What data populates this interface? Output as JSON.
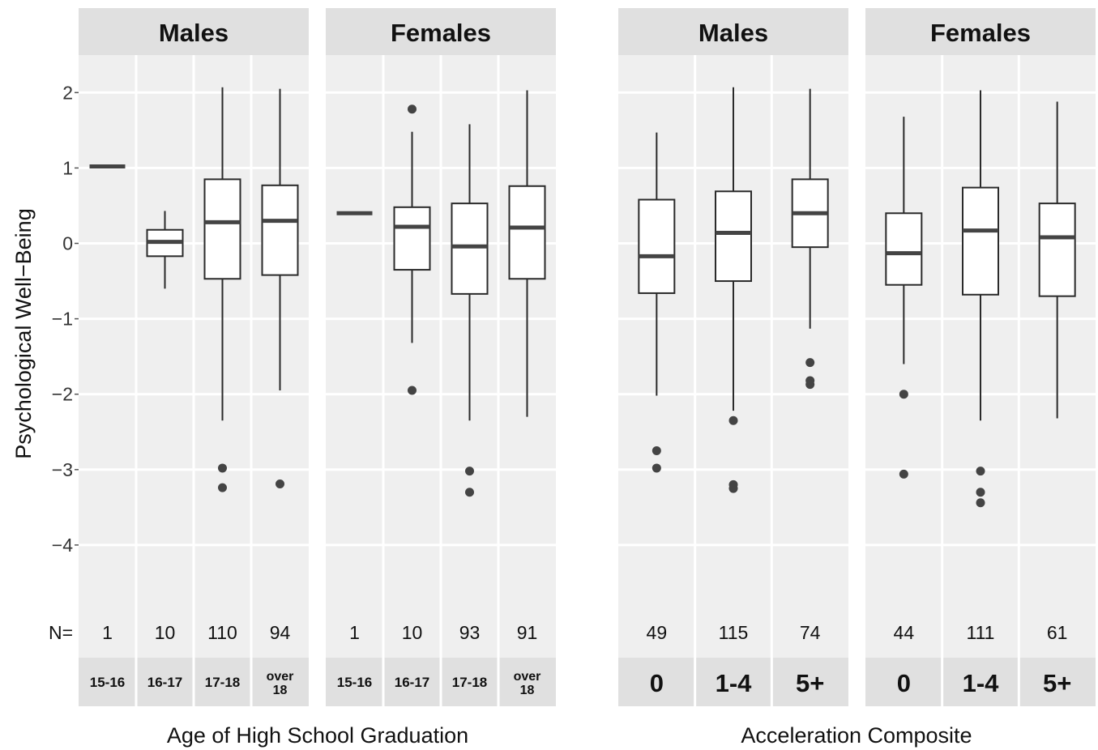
{
  "y_axis_label": "Psychological Well−Being",
  "n_prefix": "N=",
  "colors": {
    "panel_bg": "#efefef",
    "strip_bg": "#e0e0e0",
    "grid": "#ffffff",
    "box_line": "#2a2a2a",
    "median": "#444444",
    "outlier": "#444444",
    "text": "#111111",
    "tick_text": "#333333"
  },
  "chart_data": [
    {
      "type": "box",
      "xlabel": "Age of High School Graduation",
      "ylabel": "Psychological Well−Being",
      "ylim": [
        -5.0,
        2.4
      ],
      "y_ticks": [
        2,
        1,
        0,
        -1,
        -2,
        -3,
        -4
      ],
      "y_tick_labels": [
        "2",
        "1",
        "0",
        "−1",
        "−2",
        "−3",
        "−4"
      ],
      "grid": true,
      "panels": [
        {
          "name": "Males",
          "categories": [
            "15-16",
            "16-17",
            "17-18",
            "over 18"
          ],
          "n": [
            "1",
            "10",
            "110",
            "94"
          ],
          "boxes": [
            {
              "median": 1.02,
              "q1": 1.02,
              "q3": 1.02,
              "low": 1.02,
              "high": 1.02,
              "outliers": []
            },
            {
              "median": 0.02,
              "q1": -0.17,
              "q3": 0.18,
              "low": -0.6,
              "high": 0.43,
              "outliers": []
            },
            {
              "median": 0.28,
              "q1": -0.47,
              "q3": 0.85,
              "low": -2.35,
              "high": 2.07,
              "outliers": [
                -2.98,
                -3.24
              ]
            },
            {
              "median": 0.3,
              "q1": -0.42,
              "q3": 0.77,
              "low": -1.95,
              "high": 2.05,
              "outliers": [
                -3.19
              ]
            }
          ]
        },
        {
          "name": "Females",
          "categories": [
            "15-16",
            "16-17",
            "17-18",
            "over 18"
          ],
          "n": [
            "1",
            "10",
            "93",
            "91"
          ],
          "boxes": [
            {
              "median": 0.4,
              "q1": 0.4,
              "q3": 0.4,
              "low": 0.4,
              "high": 0.4,
              "outliers": []
            },
            {
              "median": 0.22,
              "q1": -0.35,
              "q3": 0.48,
              "low": -1.32,
              "high": 1.48,
              "outliers": [
                1.78,
                -1.95
              ]
            },
            {
              "median": -0.04,
              "q1": -0.67,
              "q3": 0.53,
              "low": -2.35,
              "high": 1.58,
              "outliers": [
                -3.02,
                -3.3
              ]
            },
            {
              "median": 0.21,
              "q1": -0.47,
              "q3": 0.76,
              "low": -2.3,
              "high": 2.03,
              "outliers": []
            }
          ]
        }
      ]
    },
    {
      "type": "box",
      "xlabel": "Acceleration Composite",
      "ylabel": "Psychological Well−Being",
      "ylim": [
        -5.0,
        2.4
      ],
      "grid": true,
      "panels": [
        {
          "name": "Males",
          "categories": [
            "0",
            "1-4",
            "5+"
          ],
          "n": [
            "49",
            "115",
            "74"
          ],
          "boxes": [
            {
              "median": -0.17,
              "q1": -0.66,
              "q3": 0.58,
              "low": -2.02,
              "high": 1.47,
              "outliers": [
                -2.75,
                -2.98
              ]
            },
            {
              "median": 0.14,
              "q1": -0.5,
              "q3": 0.69,
              "low": -2.22,
              "high": 2.07,
              "outliers": [
                -2.35,
                -3.2,
                -3.25
              ]
            },
            {
              "median": 0.4,
              "q1": -0.05,
              "q3": 0.85,
              "low": -1.13,
              "high": 2.05,
              "outliers": [
                -1.58,
                -1.82,
                -1.87
              ]
            }
          ]
        },
        {
          "name": "Females",
          "categories": [
            "0",
            "1-4",
            "5+"
          ],
          "n": [
            "44",
            "111",
            "61"
          ],
          "boxes": [
            {
              "median": -0.13,
              "q1": -0.55,
              "q3": 0.4,
              "low": -1.6,
              "high": 1.68,
              "outliers": [
                -2.0,
                -3.06
              ]
            },
            {
              "median": 0.17,
              "q1": -0.68,
              "q3": 0.74,
              "low": -2.35,
              "high": 2.03,
              "outliers": [
                -3.02,
                -3.3,
                -3.44
              ]
            },
            {
              "median": 0.08,
              "q1": -0.7,
              "q3": 0.53,
              "low": -2.32,
              "high": 1.88,
              "outliers": []
            }
          ]
        }
      ]
    }
  ]
}
